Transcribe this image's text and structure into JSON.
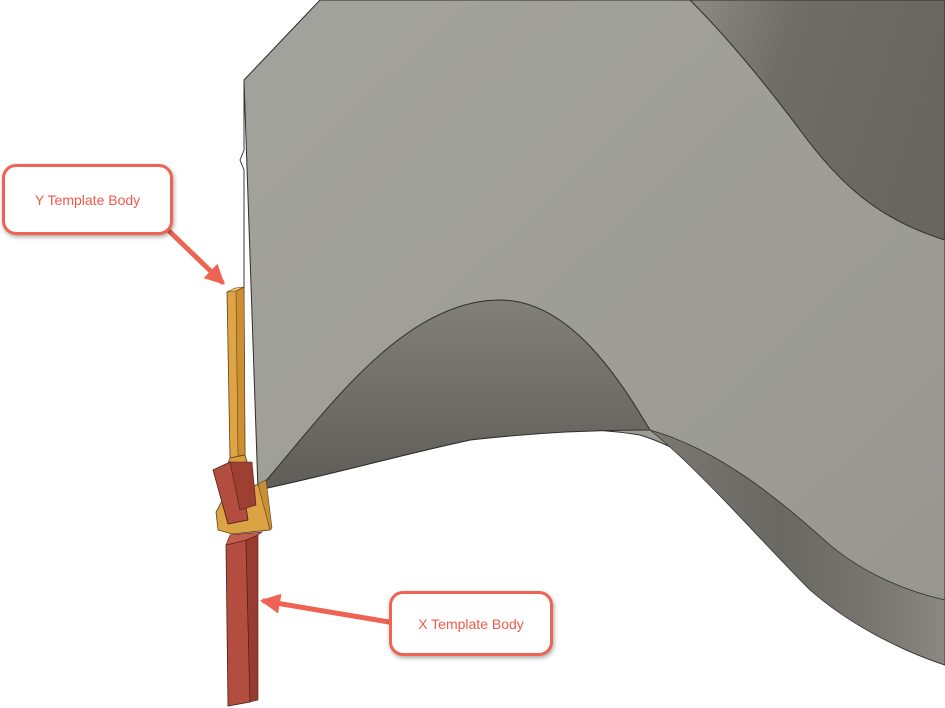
{
  "annotations": {
    "y_label": "Y Template Body",
    "x_label": "X Template Body"
  },
  "colors": {
    "surface_light": "#a0a09a",
    "surface_dark": "#6b6862",
    "y_body": "#dfa443",
    "x_body": "#b24d40",
    "callout_stroke": "#ee6352",
    "callout_text": "#ee5a48"
  }
}
